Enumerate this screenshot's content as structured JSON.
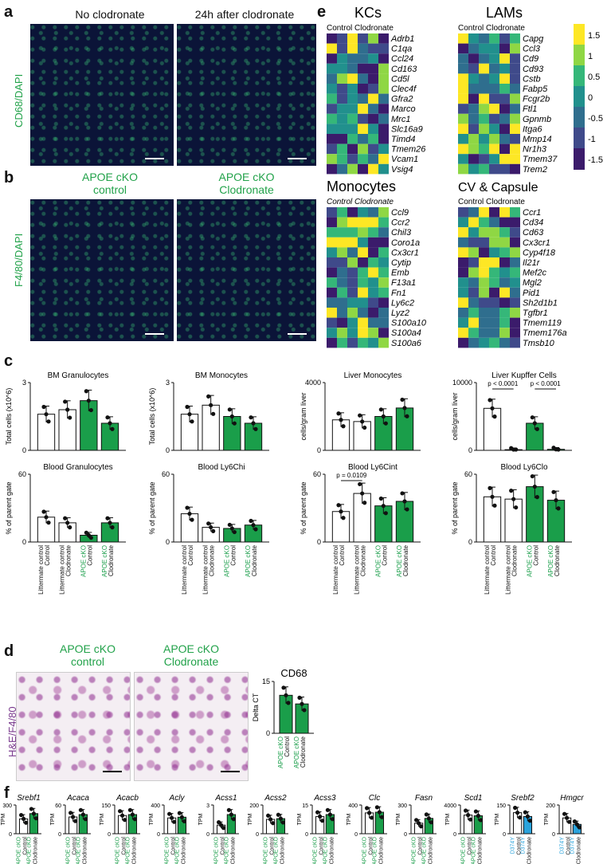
{
  "panel_a": {
    "letter": "a",
    "col1": "No clodronate",
    "col2": "24h after clodronate",
    "stain": "CD68/DAPI"
  },
  "panel_b": {
    "letter": "b",
    "col1_line1": "APOE cKO",
    "col1_line2": "control",
    "col2_line1": "APOE cKO",
    "col2_line2": "Clodronate",
    "stain": "F4/80/DAPI"
  },
  "panel_c": {
    "letter": "c"
  },
  "panel_d": {
    "letter": "d",
    "col1_line1": "APOE cKO",
    "col1_line2": "control",
    "col2_line1": "APOE cKO",
    "col2_line2": "Clodronate",
    "stain": "H&E/F4/80"
  },
  "panel_e": {
    "letter": "e",
    "colorbar_ticks": [
      "1.5",
      "1",
      "0.5",
      "0",
      "-0.5",
      "-1",
      "-1.5"
    ],
    "heatmaps": [
      {
        "title": "KCs",
        "header": "Control Clodronate",
        "genes": [
          "Adrb1",
          "C1qa",
          "Ccl24",
          "Cd163",
          "Cd5l",
          "Clec4f",
          "Gfra2",
          "Marco",
          "Mrc1",
          "Slc16a9",
          "Timd4",
          "Tmem26",
          "Vcam1",
          "Vsig4"
        ]
      },
      {
        "title": "LAMs",
        "header": "Control Clodronate",
        "genes": [
          "Capg",
          "Ccl3",
          "Cd9",
          "Cd93",
          "Cstb",
          "Fabp5",
          "Fcgr2b",
          "Ftl1",
          "Gpnmb",
          "Itga6",
          "Mmp14",
          "Nr1h3",
          "Tmem37",
          "Trem2"
        ]
      },
      {
        "title": "Monocytes",
        "header": "Control Clodronate",
        "genes": [
          "Ccl9",
          "Ccr2",
          "Chil3",
          "Coro1a",
          "Cx3cr1",
          "Cytip",
          "Emb",
          "F13a1",
          "Fn1",
          "Ly6c2",
          "Lyz2",
          "S100a10",
          "S100a4",
          "S100a6"
        ]
      },
      {
        "title": "CV & Capsule",
        "header": "Control Clodronate",
        "genes": [
          "Ccr1",
          "Cd34",
          "Cd63",
          "Cx3cr1",
          "Cyp4f18",
          "Il21r",
          "Mef2c",
          "Mgl2",
          "Pid1",
          "Sh2d1b1",
          "Tgfbr1",
          "Tmem119",
          "Tmem176a",
          "Tmsb10"
        ]
      }
    ]
  },
  "panel_f": {
    "letter": "f"
  },
  "chart_data": [
    {
      "type": "bar",
      "title": "BM Granulocytes",
      "ylabel": "Total cells (x10^6)",
      "ylim": [
        0,
        3
      ],
      "categories": [
        "Littermate control Control",
        "Littermate control Clodronate",
        "APOE cKO Control",
        "APOE cKO Clodronate"
      ],
      "values": [
        1.6,
        1.8,
        2.2,
        1.2
      ]
    },
    {
      "type": "bar",
      "title": "BM Monocytes",
      "ylabel": "Total cells (x10^6)",
      "ylim": [
        0,
        3
      ],
      "categories": [
        "Littermate control Control",
        "Littermate control Clodronate",
        "APOE cKO Control",
        "APOE cKO Clodronate"
      ],
      "values": [
        1.6,
        2.0,
        1.5,
        1.2
      ]
    },
    {
      "type": "bar",
      "title": "Liver Monocytes",
      "ylabel": "cells/gram liver",
      "ylim": [
        0,
        4000
      ],
      "categories": [
        "Littermate control Control",
        "Littermate control Clodronate",
        "APOE cKO Control",
        "APOE cKO Clodronate"
      ],
      "values": [
        1800,
        1700,
        2000,
        2500
      ]
    },
    {
      "type": "bar",
      "title": "Liver Kupffer Cells",
      "ylabel": "cells/gram liver",
      "ylim": [
        0,
        10000
      ],
      "categories": [
        "Littermate control Control",
        "Littermate control Clodronate",
        "APOE cKO Control",
        "APOE cKO Clodronate"
      ],
      "values": [
        6200,
        100,
        4000,
        150
      ],
      "annotations": [
        "p < 0.0001",
        "p < 0.0001"
      ]
    },
    {
      "type": "bar",
      "title": "Blood Granulocytes",
      "ylabel": "% of parent gate",
      "ylim": [
        0,
        60
      ],
      "categories": [
        "Littermate control Control",
        "Littermate control Clodronate",
        "APOE cKO Control",
        "APOE cKO Clodronate"
      ],
      "values": [
        22,
        17,
        6,
        17
      ]
    },
    {
      "type": "bar",
      "title": "Blood Ly6Chi",
      "ylabel": "% of parent gate",
      "ylim": [
        0,
        60
      ],
      "categories": [
        "Littermate control Control",
        "Littermate control Clodronate",
        "APOE cKO Control",
        "APOE cKO Clodronate"
      ],
      "values": [
        25,
        13,
        12,
        15
      ]
    },
    {
      "type": "bar",
      "title": "Blood Ly6Cint",
      "ylabel": "% of parent gate",
      "ylim": [
        0,
        60
      ],
      "categories": [
        "Littermate control Control",
        "Littermate control Clodronate",
        "APOE cKO Control",
        "APOE cKO Clodronate"
      ],
      "values": [
        27,
        43,
        32,
        36
      ],
      "annotations": [
        "p = 0.0109"
      ]
    },
    {
      "type": "bar",
      "title": "Blood Ly6Clo",
      "ylabel": "% of parent gate",
      "ylim": [
        0,
        60
      ],
      "categories": [
        "Littermate control Control",
        "Littermate control Clodronate",
        "APOE cKO Control",
        "APOE cKO Clodronate"
      ],
      "values": [
        40,
        38,
        49,
        37
      ]
    },
    {
      "type": "bar",
      "title": "CD68",
      "ylabel": "Delta CT",
      "ylim": [
        0,
        15
      ],
      "categories": [
        "APOE cKO Control",
        "APOE cKO Clodronate"
      ],
      "values": [
        11,
        8.5
      ]
    },
    {
      "type": "bar",
      "title": "Srebf1",
      "ylabel": "TPM",
      "ylim": [
        0,
        300
      ],
      "categories": [
        "APOE cKO Control",
        "APOE cKO Clodronate"
      ],
      "values": [
        155,
        210
      ]
    },
    {
      "type": "bar",
      "title": "Acaca",
      "ylabel": "TPM",
      "ylim": [
        0,
        60
      ],
      "categories": [
        "APOE cKO Control",
        "APOE cKO Clodronate"
      ],
      "values": [
        35,
        40
      ]
    },
    {
      "type": "bar",
      "title": "Acacb",
      "ylabel": "TPM",
      "ylim": [
        0,
        150
      ],
      "categories": [
        "APOE cKO Control",
        "APOE cKO Clodronate"
      ],
      "values": [
        95,
        100
      ]
    },
    {
      "type": "bar",
      "title": "Acly",
      "ylabel": "TPM",
      "ylim": [
        0,
        400
      ],
      "categories": [
        "APOE cKO Control",
        "APOE cKO Clodronate"
      ],
      "values": [
        220,
        230
      ]
    },
    {
      "type": "bar",
      "title": "Acss1",
      "ylabel": "TPM",
      "ylim": [
        0,
        3
      ],
      "categories": [
        "APOE cKO Control",
        "APOE cKO Clodronate"
      ],
      "values": [
        0.9,
        2.0
      ]
    },
    {
      "type": "bar",
      "title": "Acss2",
      "ylabel": "TPM",
      "ylim": [
        0,
        200
      ],
      "categories": [
        "APOE cKO Control",
        "APOE cKO Clodronate"
      ],
      "values": [
        100,
        105
      ]
    },
    {
      "type": "bar",
      "title": "Acss3",
      "ylabel": "TPM",
      "ylim": [
        0,
        15
      ],
      "categories": [
        "APOE cKO Control",
        "APOE cKO Clodronate"
      ],
      "values": [
        9,
        10
      ]
    },
    {
      "type": "bar",
      "title": "Clc",
      "ylabel": "TPM",
      "ylim": [
        0,
        400
      ],
      "categories": [
        "APOE cKO Control",
        "APOE cKO Clodronate"
      ],
      "values": [
        290,
        300
      ]
    },
    {
      "type": "bar",
      "title": "Fasn",
      "ylabel": "TPM",
      "ylim": [
        0,
        300
      ],
      "categories": [
        "APOE cKO Control",
        "APOE cKO Clodronate"
      ],
      "values": [
        110,
        160
      ]
    },
    {
      "type": "bar",
      "title": "Scd1",
      "ylabel": "TPM",
      "ylim": [
        0,
        4000
      ],
      "categories": [
        "APOE cKO Control",
        "APOE cKO Clodronate"
      ],
      "values": [
        2600,
        2500
      ]
    },
    {
      "type": "bar",
      "title": "Srebf2",
      "ylabel": "TPM",
      "ylim": [
        0,
        150
      ],
      "categories": [
        "D374Y Control",
        "D374Y Clodronate"
      ],
      "values": [
        110,
        90
      ]
    },
    {
      "type": "bar",
      "title": "Hmgcr",
      "ylabel": "TPM",
      "ylim": [
        0,
        200
      ],
      "categories": [
        "D374Y Control",
        "D374Y Clodronate"
      ],
      "values": [
        110,
        65
      ]
    }
  ]
}
